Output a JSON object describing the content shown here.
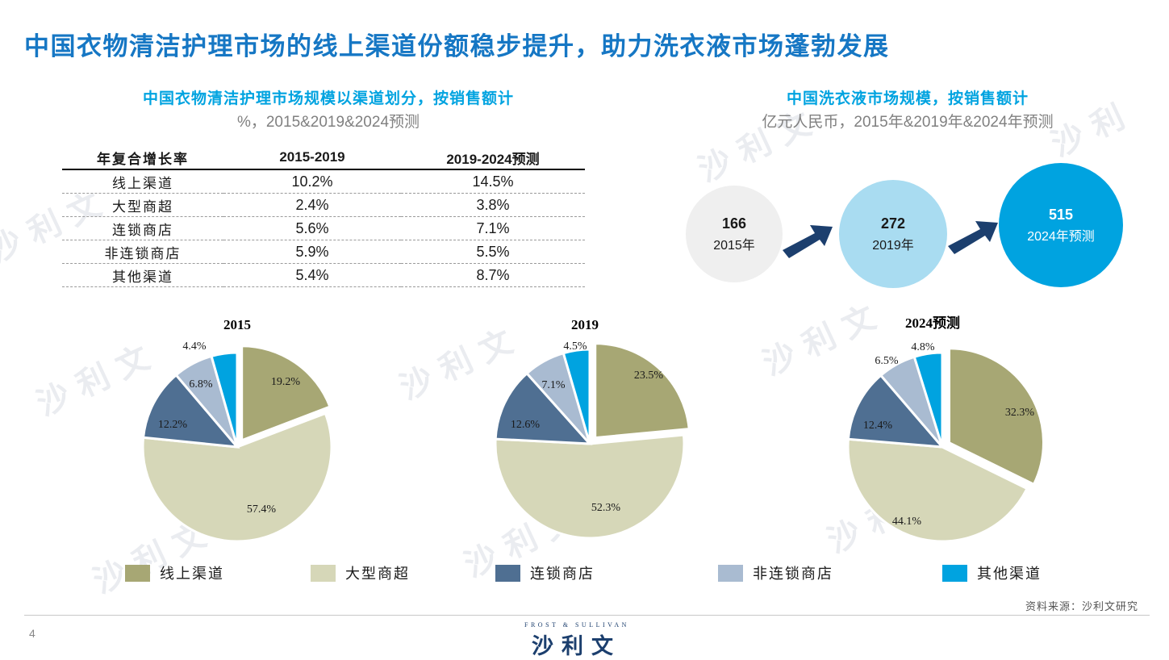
{
  "title": "中国衣物清洁护理市场的线上渠道份额稳步提升，助力洗衣液市场蓬勃发展",
  "left_panel": {
    "heading": "中国衣物清洁护理市场规模以渠道划分，按销售额计",
    "unit": "%，2015&2019&2024预测"
  },
  "right_panel": {
    "heading": "中国洗衣液市场规模，按销售额计",
    "unit": "亿元人民币，2015年&2019年&2024年预测",
    "circles": [
      {
        "value": "166",
        "label": "2015年",
        "color": "#efefef"
      },
      {
        "value": "272",
        "label": "2019年",
        "color": "#a9dcf1"
      },
      {
        "value": "515",
        "label": "2024年预测",
        "color": "#00a3e0"
      }
    ]
  },
  "table": {
    "headers": [
      "年复合增长率",
      "2015-2019",
      "2019-2024预测"
    ],
    "rows": [
      [
        "线上渠道",
        "10.2%",
        "14.5%"
      ],
      [
        "大型商超",
        "2.4%",
        "3.8%"
      ],
      [
        "连锁商店",
        "5.6%",
        "7.1%"
      ],
      [
        "非连锁商店",
        "5.9%",
        "5.5%"
      ],
      [
        "其他渠道",
        "5.4%",
        "8.7%"
      ]
    ]
  },
  "colors": {
    "线上渠道": "#a7a774",
    "大型商超": "#d6d7b8",
    "连锁商店": "#4f6f92",
    "非连锁商店": "#a9bbd1",
    "其他渠道": "#00a3e0",
    "arrow": "#1c3f6e"
  },
  "chart_data": [
    {
      "type": "pie",
      "title": "2015",
      "categories": [
        "线上渠道",
        "大型商超",
        "连锁商店",
        "非连锁商店",
        "其他渠道"
      ],
      "values": [
        19.2,
        57.4,
        12.2,
        6.8,
        4.4
      ],
      "labels": [
        "19.2%",
        "57.4%",
        "12.2%",
        "6.8%",
        "4.4%"
      ]
    },
    {
      "type": "pie",
      "title": "2019",
      "categories": [
        "线上渠道",
        "大型商超",
        "连锁商店",
        "非连锁商店",
        "其他渠道"
      ],
      "values": [
        23.5,
        52.3,
        12.6,
        7.1,
        4.5
      ],
      "labels": [
        "23.5%",
        "52.3%",
        "12.6%",
        "7.1%",
        "4.5%"
      ]
    },
    {
      "type": "pie",
      "title": "2024预测",
      "categories": [
        "线上渠道",
        "大型商超",
        "连锁商店",
        "非连锁商店",
        "其他渠道"
      ],
      "values": [
        32.3,
        44.1,
        12.4,
        6.5,
        4.8
      ],
      "labels": [
        "32.3%",
        "44.1%",
        "12.4%",
        "6.5%",
        "4.8%"
      ]
    }
  ],
  "legend": [
    "线上渠道",
    "大型商超",
    "连锁商店",
    "非连锁商店",
    "其他渠道"
  ],
  "source": "资料来源：沙利文研究",
  "page_number": "4",
  "logo": {
    "en": "FROST & SULLIVAN",
    "cn": "沙利文"
  }
}
